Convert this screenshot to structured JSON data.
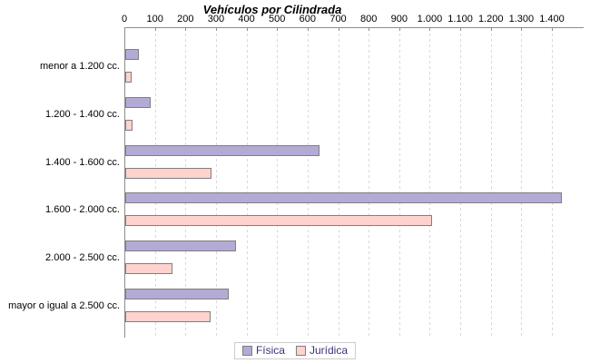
{
  "title": "Vehículos por Cilindrada",
  "chart_data": {
    "type": "bar",
    "orientation": "horizontal",
    "title": "Vehículos por Cilindrada",
    "categories": [
      "menor a 1.200 cc.",
      "1.200 - 1.400 cc.",
      "1.400 - 1.600 cc.",
      "1.600 - 2.000 cc.",
      "2.000 - 2.500 cc.",
      "mayor o igual a 2.500 cc."
    ],
    "series": [
      {
        "name": "Física",
        "color": "#b4aad6",
        "border_color": "#7f7f7f",
        "values": [
          45,
          82,
          635,
          1430,
          363,
          339
        ]
      },
      {
        "name": "Jurídica",
        "color": "#ffd2cd",
        "border_color": "#7f7f7f",
        "values": [
          20,
          25,
          282,
          1005,
          155,
          279
        ]
      }
    ],
    "x_ticks": [
      "0",
      "100",
      "200",
      "300",
      "400",
      "500",
      "600",
      "700",
      "800",
      "900",
      "1.000",
      "1.100",
      "1.200",
      "1.300",
      "1.400"
    ],
    "xlim": [
      0,
      1400
    ],
    "x_tick_step": 100,
    "grid": "vertical-dashed",
    "gridline_color": "#d9d9d9",
    "axis_color": "#8c8c8c",
    "legend_position": "bottom-center"
  },
  "legend": {
    "items": [
      {
        "label": "Física",
        "color": "#b4aad6"
      },
      {
        "label": "Jurídica",
        "color": "#ffd2cd"
      }
    ]
  }
}
